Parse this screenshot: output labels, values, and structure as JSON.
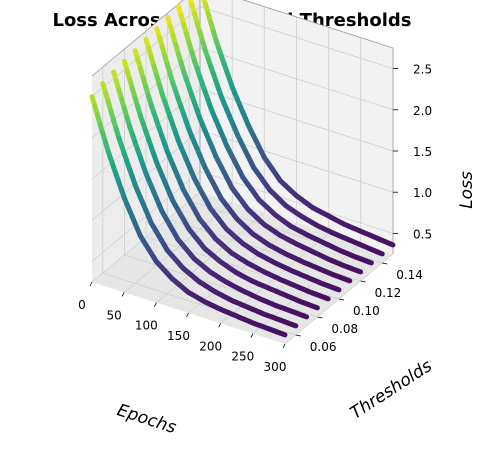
{
  "chart_data": {
    "type": "line",
    "title": "Loss Across Epochs and Thresholds",
    "xlabel": "Epochs",
    "ylabel": "Thresholds",
    "zlabel": "Loss",
    "x_ticks": [
      0,
      50,
      100,
      150,
      200,
      250,
      300
    ],
    "y_ticks": [
      0.06,
      0.08,
      0.1,
      0.12,
      0.14
    ],
    "z_ticks": [
      0.5,
      1.0,
      1.5,
      2.0,
      2.5
    ],
    "x_range": [
      0,
      300
    ],
    "y_range": [
      0.05,
      0.15
    ],
    "z_range": [
      0.25,
      2.75
    ],
    "colormap": "viridis",
    "grid": true,
    "thresholds": [
      0.05,
      0.06,
      0.07,
      0.08,
      0.09,
      0.1,
      0.11,
      0.12,
      0.13,
      0.14,
      0.15
    ],
    "series": [
      {
        "threshold": 0.05,
        "epochs": [
          0,
          25,
          50,
          75,
          100,
          125,
          150,
          175,
          200,
          225,
          250,
          275,
          300
        ],
        "loss": [
          2.5,
          1.9,
          1.4,
          1.0,
          0.75,
          0.6,
          0.5,
          0.45,
          0.42,
          0.4,
          0.38,
          0.37,
          0.36
        ]
      },
      {
        "threshold": 0.06,
        "epochs": [
          0,
          25,
          50,
          75,
          100,
          125,
          150,
          175,
          200,
          225,
          250,
          275,
          300
        ],
        "loss": [
          2.55,
          1.95,
          1.45,
          1.05,
          0.78,
          0.62,
          0.52,
          0.46,
          0.42,
          0.4,
          0.38,
          0.37,
          0.36
        ]
      },
      {
        "threshold": 0.07,
        "epochs": [
          0,
          25,
          50,
          75,
          100,
          125,
          150,
          175,
          200,
          225,
          250,
          275,
          300
        ],
        "loss": [
          2.58,
          1.98,
          1.48,
          1.08,
          0.8,
          0.63,
          0.53,
          0.47,
          0.43,
          0.4,
          0.38,
          0.37,
          0.36
        ]
      },
      {
        "threshold": 0.08,
        "epochs": [
          0,
          25,
          50,
          75,
          100,
          125,
          150,
          175,
          200,
          225,
          250,
          275,
          300
        ],
        "loss": [
          2.6,
          2.0,
          1.5,
          1.1,
          0.82,
          0.64,
          0.54,
          0.47,
          0.43,
          0.41,
          0.39,
          0.37,
          0.36
        ]
      },
      {
        "threshold": 0.09,
        "epochs": [
          0,
          25,
          50,
          75,
          100,
          125,
          150,
          175,
          200,
          225,
          250,
          275,
          300
        ],
        "loss": [
          2.62,
          2.02,
          1.52,
          1.12,
          0.83,
          0.65,
          0.54,
          0.48,
          0.44,
          0.41,
          0.39,
          0.37,
          0.36
        ]
      },
      {
        "threshold": 0.1,
        "epochs": [
          0,
          25,
          50,
          75,
          100,
          125,
          150,
          175,
          200,
          225,
          250,
          275,
          300
        ],
        "loss": [
          2.65,
          2.05,
          1.55,
          1.15,
          0.85,
          0.66,
          0.55,
          0.48,
          0.44,
          0.41,
          0.39,
          0.37,
          0.36
        ]
      },
      {
        "threshold": 0.11,
        "epochs": [
          0,
          25,
          50,
          75,
          100,
          125,
          150,
          175,
          200,
          225,
          250,
          275,
          300
        ],
        "loss": [
          2.67,
          2.07,
          1.57,
          1.17,
          0.86,
          0.67,
          0.55,
          0.48,
          0.44,
          0.41,
          0.39,
          0.37,
          0.36
        ]
      },
      {
        "threshold": 0.12,
        "epochs": [
          0,
          25,
          50,
          75,
          100,
          125,
          150,
          175,
          200,
          225,
          250,
          275,
          300
        ],
        "loss": [
          2.7,
          2.1,
          1.6,
          1.2,
          0.88,
          0.68,
          0.56,
          0.49,
          0.45,
          0.42,
          0.39,
          0.37,
          0.36
        ]
      },
      {
        "threshold": 0.13,
        "epochs": [
          0,
          25,
          50,
          75,
          100,
          125,
          150,
          175,
          200,
          225,
          250,
          275,
          300
        ],
        "loss": [
          2.72,
          2.12,
          1.62,
          1.22,
          0.9,
          0.69,
          0.57,
          0.49,
          0.45,
          0.42,
          0.39,
          0.37,
          0.36
        ]
      },
      {
        "threshold": 0.14,
        "epochs": [
          0,
          25,
          50,
          75,
          100,
          125,
          150,
          175,
          200,
          225,
          250,
          275,
          300
        ],
        "loss": [
          2.74,
          2.14,
          1.64,
          1.24,
          0.91,
          0.7,
          0.57,
          0.5,
          0.45,
          0.42,
          0.4,
          0.38,
          0.36
        ]
      },
      {
        "threshold": 0.15,
        "epochs": [
          0,
          25,
          50,
          75,
          100,
          125,
          150,
          175,
          200,
          225,
          250,
          275,
          300
        ],
        "loss": [
          2.75,
          2.15,
          1.65,
          1.25,
          0.92,
          0.7,
          0.58,
          0.5,
          0.46,
          0.42,
          0.4,
          0.38,
          0.36
        ]
      }
    ]
  }
}
